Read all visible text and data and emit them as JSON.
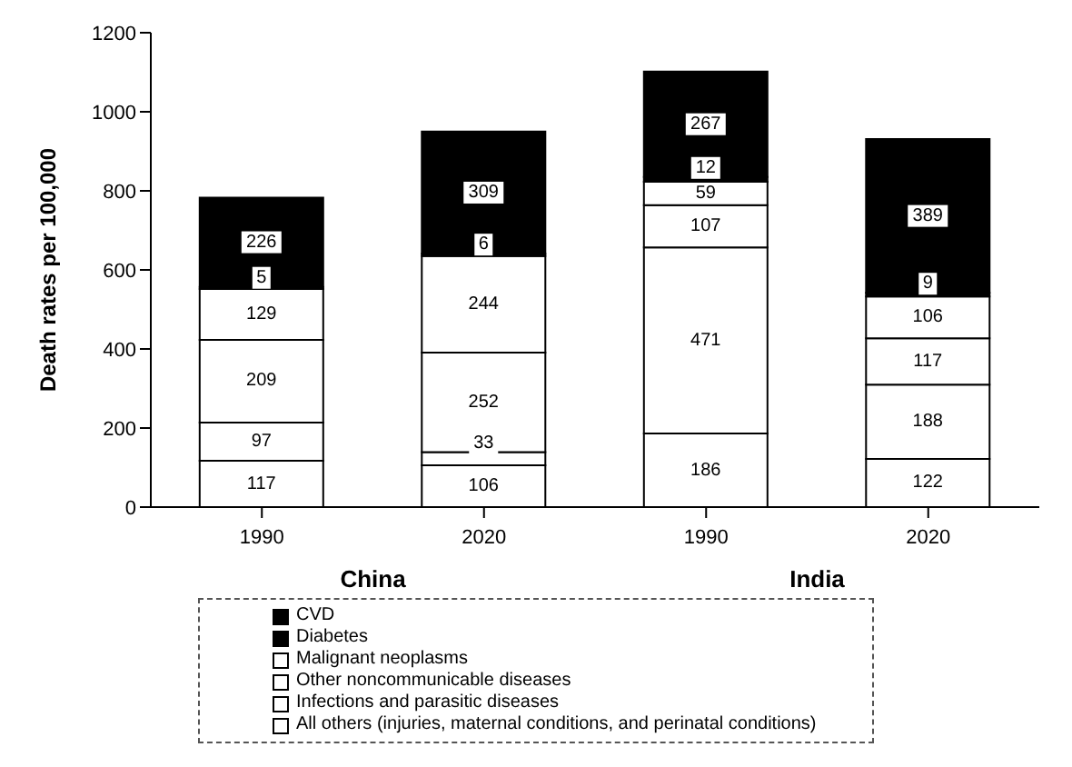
{
  "chart_data": {
    "type": "bar",
    "stacked": true,
    "ylabel": "Death rates per 100,000",
    "categories": [
      "1990",
      "2020",
      "1990",
      "2020"
    ],
    "series": [
      {
        "name": "All others (injuries, maternal conditions, and perinatal conditions)",
        "color": "#ffffff",
        "values": [
          117,
          106,
          186,
          122
        ]
      },
      {
        "name": "Infections and parasitic diseases",
        "color": "#ffffff",
        "values": [
          97,
          33,
          471,
          188
        ]
      },
      {
        "name": "Other noncommunicable diseases",
        "color": "#ffffff",
        "values": [
          209,
          252,
          107,
          117
        ]
      },
      {
        "name": "Malignant neoplasms",
        "color": "#ffffff",
        "values": [
          129,
          244,
          59,
          106
        ]
      },
      {
        "name": "Diabetes",
        "color": "#000000",
        "values": [
          5,
          6,
          12,
          9
        ]
      },
      {
        "name": "CVD",
        "color": "#000000",
        "values": [
          226,
          309,
          267,
          389
        ]
      }
    ],
    "ylim": [
      0,
      1200
    ],
    "yticks": [
      0,
      200,
      400,
      600,
      800,
      1000,
      1200
    ],
    "data_labels": true,
    "legend": "bottom",
    "grid": false,
    "annotations": [
      "China",
      "India"
    ]
  }
}
